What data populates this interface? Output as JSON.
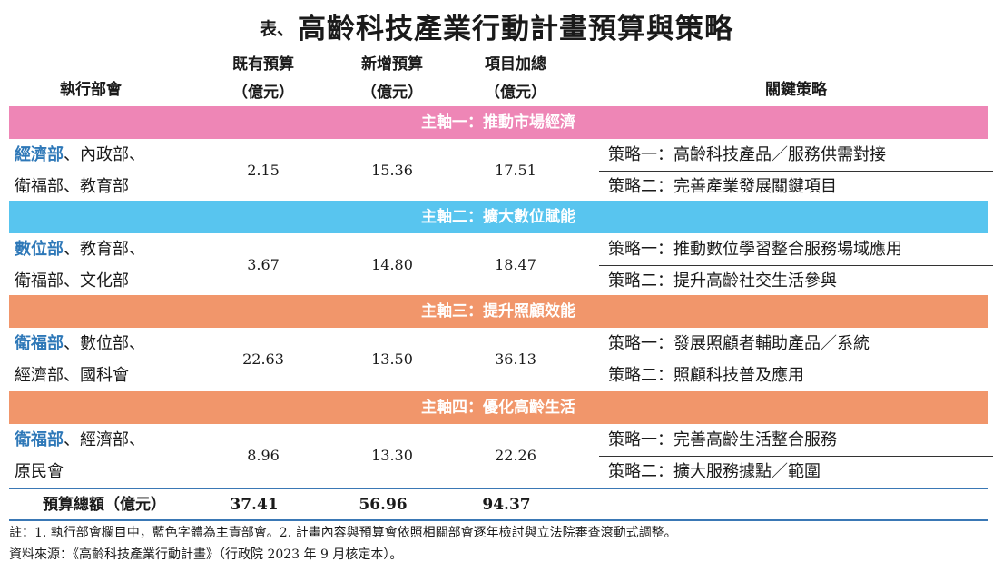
{
  "title": {
    "prefix": "表、",
    "main": "高齡科技產業行動計畫預算與策略"
  },
  "header": {
    "dept": "執行部會",
    "existing": [
      "既有預算",
      "（億元）"
    ],
    "new_budget": [
      "新增預算",
      "（億元）"
    ],
    "total": [
      "項目加總",
      "（億元）"
    ],
    "strategy": "關鍵策略"
  },
  "colors": {
    "axis1": "#ee86b6",
    "axis2": "#58c5ef",
    "axis3": "#f1966b",
    "axis4": "#f1966b",
    "lead_dept": "#2e78b8",
    "rule": "#3a78b5"
  },
  "axes": [
    {
      "label": "主軸一：推動市場經濟",
      "dept_lead": "經濟部",
      "dept_rest_1": "、內政部、",
      "dept_line2": "衛福部、教育部",
      "existing": "2.15",
      "new_budget": "15.36",
      "total": "17.51",
      "strategies": [
        "策略一：高齡科技產品／服務供需對接",
        "策略二：完善產業發展關鍵項目"
      ]
    },
    {
      "label": "主軸二：擴大數位賦能",
      "dept_lead": "數位部",
      "dept_rest_1": "、教育部、",
      "dept_line2": "衛福部、文化部",
      "existing": "3.67",
      "new_budget": "14.80",
      "total": "18.47",
      "strategies": [
        "策略一：推動數位學習整合服務場域應用",
        "策略二：提升高齡社交生活參與"
      ]
    },
    {
      "label": "主軸三：提升照顧效能",
      "dept_lead": "衛福部",
      "dept_rest_1": "、數位部、",
      "dept_line2": "經濟部、國科會",
      "existing": "22.63",
      "new_budget": "13.50",
      "total": "36.13",
      "strategies": [
        "策略一：發展照顧者輔助產品／系統",
        "策略二：照顧科技普及應用"
      ]
    },
    {
      "label": "主軸四：優化高齡生活",
      "dept_lead": "衛福部",
      "dept_rest_1": "、經濟部、",
      "dept_line2": "原民會",
      "existing": "8.96",
      "new_budget": "13.30",
      "total": "22.26",
      "strategies": [
        "策略一：完善高齡生活整合服務",
        "策略二：擴大服務據點／範圍"
      ]
    }
  ],
  "totals": {
    "label": "預算總額（億元）",
    "existing": "37.41",
    "new_budget": "56.96",
    "total": "94.37"
  },
  "notes": [
    "註：1. 執行部會欄目中，藍色字體為主責部會。2. 計畫內容與預算會依照相關部會逐年檢討與立法院審查滾動式調整。",
    "資料來源：《高齡科技產業行動計畫》（行政院 2023 年 9 月核定本）。"
  ]
}
